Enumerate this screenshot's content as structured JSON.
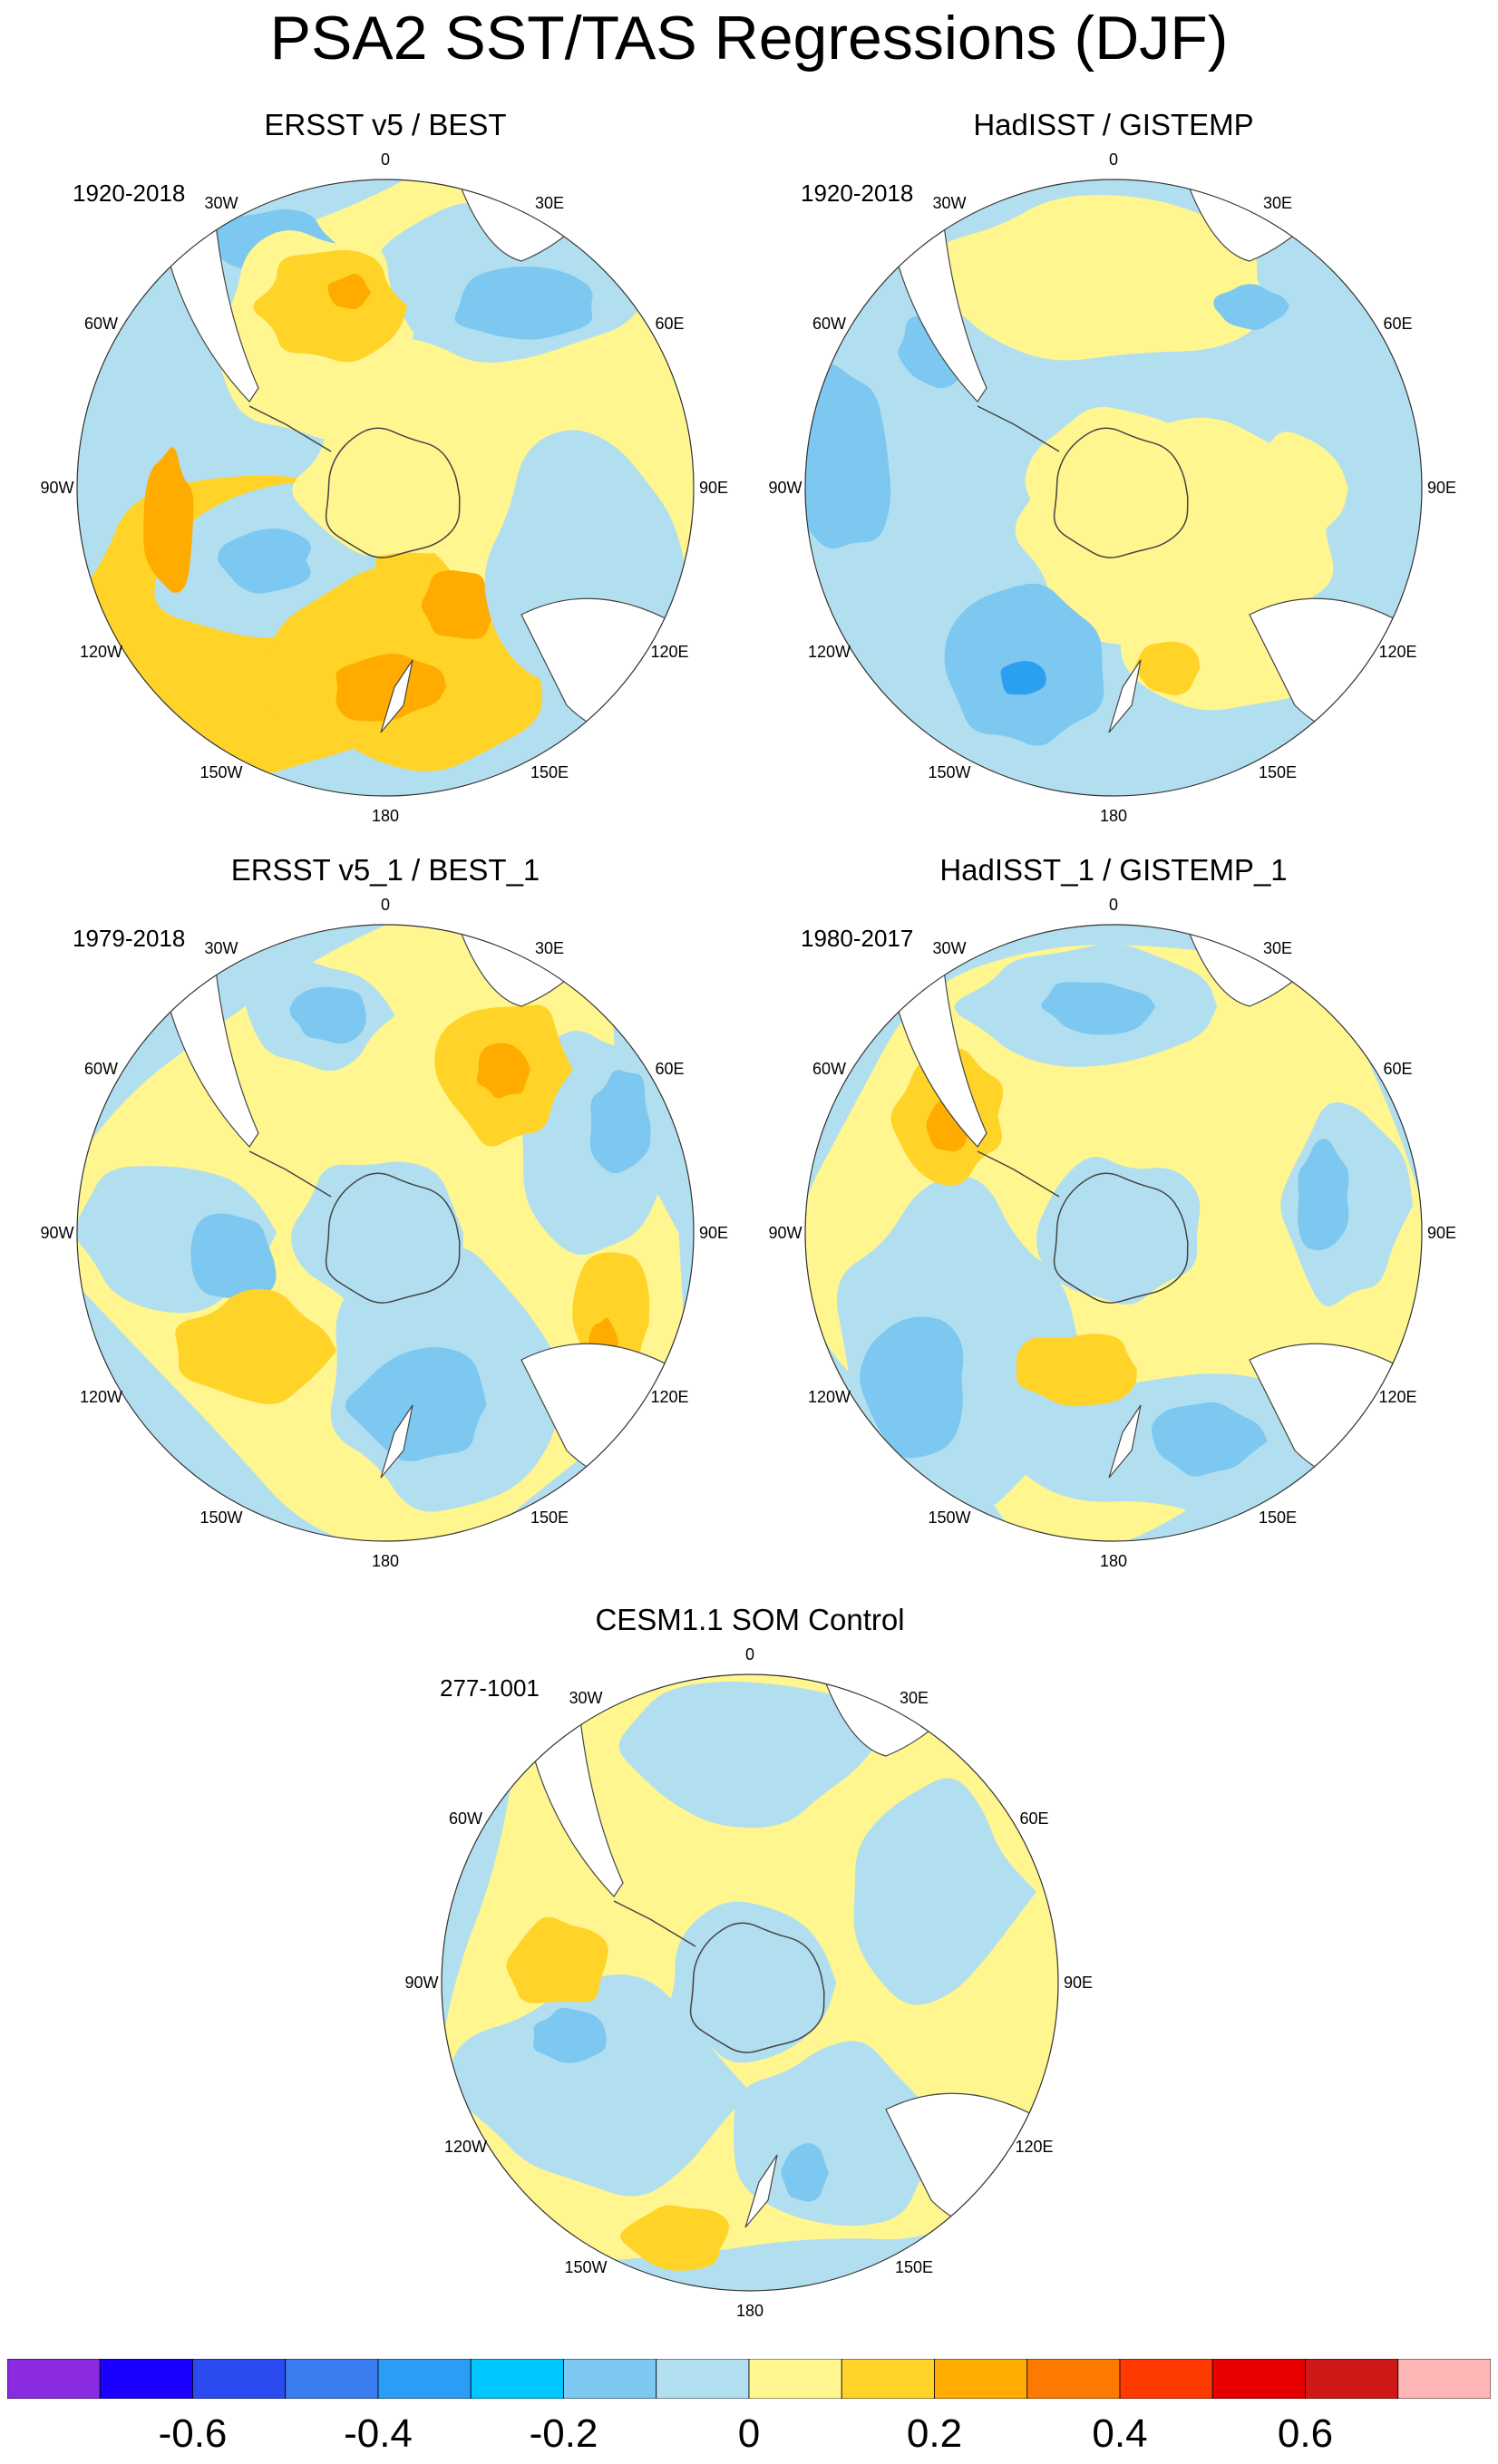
{
  "title": "PSA2 SST/TAS Regressions (DJF)",
  "longitude_labels": [
    "0",
    "30E",
    "60E",
    "90E",
    "120E",
    "150E",
    "180",
    "150W",
    "120W",
    "90W",
    "60W",
    "30W"
  ],
  "panels": [
    {
      "title": "ERSST v5 / BEST",
      "period": "1920-2018",
      "dominant": "warm"
    },
    {
      "title": "HadISST / GISTEMP",
      "period": "1920-2018",
      "dominant": "mixed"
    },
    {
      "title": "ERSST v5_1 / BEST_1",
      "period": "1979-2018",
      "dominant": "mixed"
    },
    {
      "title": "HadISST_1 / GISTEMP_1",
      "period": "1980-2017",
      "dominant": "mixed"
    },
    {
      "title": "CESM1.1 SOM Control",
      "period": "277-1001",
      "dominant": "mixed"
    }
  ],
  "colorbar": {
    "colors": [
      "#8a2be2",
      "#1a00ff",
      "#2b4bf0",
      "#3a7df0",
      "#2b9df5",
      "#00c8ff",
      "#7cc8f0",
      "#b2dff0",
      "#fff68f",
      "#ffd328",
      "#ffab00",
      "#ff7a00",
      "#ff3a00",
      "#e80000",
      "#d01818",
      "#ffb6b6"
    ],
    "labels": [
      "-0.6",
      "-0.4",
      "-0.2",
      "0",
      "0.2",
      "0.4",
      "0.6"
    ]
  },
  "palette": {
    "blue_dark": "#2ca0f0",
    "blue_mid": "#7cc8f0",
    "blue_light": "#b2dff0",
    "yellow_light": "#fff68f",
    "yellow": "#ffd328",
    "orange": "#ffab00",
    "orange_dark": "#ff7a00",
    "coast": "#444444"
  }
}
